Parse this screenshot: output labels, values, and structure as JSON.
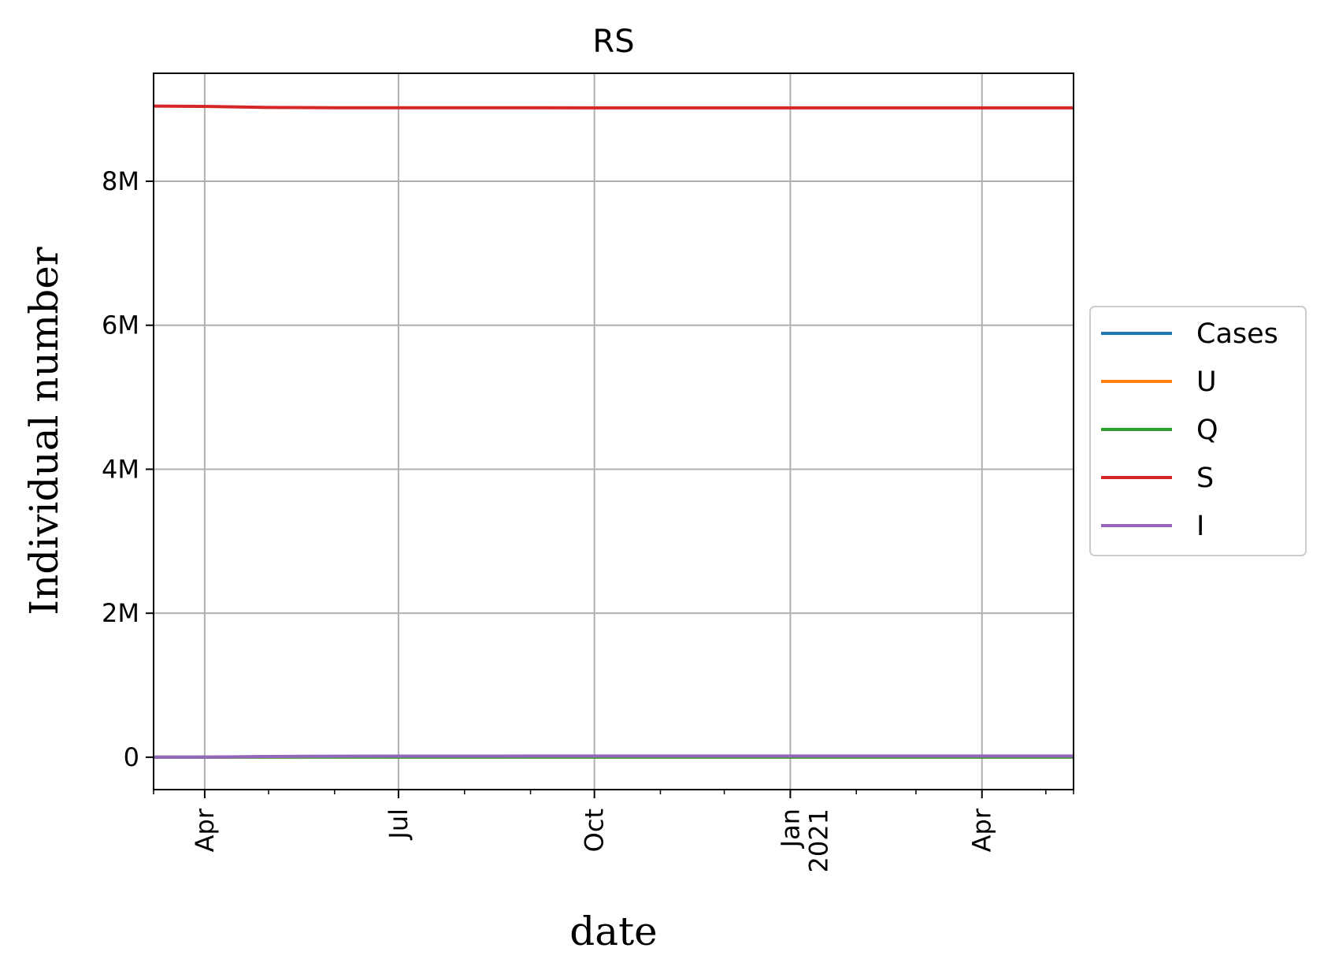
{
  "chart_data": {
    "type": "line",
    "title": "RS",
    "xlabel": "date",
    "ylabel": "Individual number",
    "x": [
      "2020-03-08",
      "2020-04-01",
      "2020-05-01",
      "2020-06-01",
      "2020-07-01",
      "2020-08-01",
      "2020-09-01",
      "2020-10-01",
      "2020-11-01",
      "2020-12-01",
      "2021-01-01",
      "2021-02-01",
      "2021-03-01",
      "2021-04-01",
      "2021-05-01",
      "2021-05-14"
    ],
    "xlim": [
      "2020-03-08",
      "2021-05-14"
    ],
    "ylim": [
      -450000,
      9500000
    ],
    "x_ticks": [
      {
        "date": "2020-04-01",
        "label": "Apr",
        "label2": ""
      },
      {
        "date": "2020-07-01",
        "label": "Jul",
        "label2": ""
      },
      {
        "date": "2020-10-01",
        "label": "Oct",
        "label2": ""
      },
      {
        "date": "2021-01-01",
        "label": "Jan",
        "label2": "2021"
      },
      {
        "date": "2021-04-01",
        "label": "Apr",
        "label2": ""
      }
    ],
    "x_minor_ticks": [
      "2020-03-08",
      "2020-05-01",
      "2020-06-01",
      "2020-08-01",
      "2020-09-01",
      "2020-11-01",
      "2020-12-01",
      "2021-02-01",
      "2021-03-01",
      "2021-05-01",
      "2021-05-14"
    ],
    "y_ticks": [
      {
        "value": 0,
        "label": "0"
      },
      {
        "value": 2000000,
        "label": "2M"
      },
      {
        "value": 4000000,
        "label": "4M"
      },
      {
        "value": 6000000,
        "label": "6M"
      },
      {
        "value": 8000000,
        "label": "8M"
      }
    ],
    "grid": true,
    "legend_position": "outside-right",
    "series": [
      {
        "name": "Cases",
        "color": "#1f77b4",
        "values": [
          0,
          1000,
          6000,
          10000,
          12000,
          13000,
          13500,
          14000,
          14000,
          14000,
          14000,
          14000,
          14000,
          14000,
          14000,
          14000
        ]
      },
      {
        "name": "U",
        "color": "#ff7f0e",
        "values": [
          0,
          500,
          2000,
          3000,
          3200,
          3300,
          3300,
          3300,
          3300,
          3300,
          3300,
          3300,
          3300,
          3300,
          3300,
          3300
        ]
      },
      {
        "name": "Q",
        "color": "#2ca02c",
        "values": [
          0,
          300,
          1500,
          2000,
          2000,
          2000,
          2000,
          2000,
          2000,
          2000,
          2000,
          2000,
          2000,
          2000,
          2000,
          2000
        ]
      },
      {
        "name": "S",
        "color": "#d62728",
        "values": [
          9045000,
          9040000,
          9025000,
          9022000,
          9021000,
          9020500,
          9020200,
          9020000,
          9020000,
          9020000,
          9020000,
          9020000,
          9020000,
          9020000,
          9020000,
          9020000
        ]
      },
      {
        "name": "I",
        "color": "#9467bd",
        "values": [
          0,
          2000,
          10000,
          14000,
          15000,
          15500,
          15800,
          16000,
          16000,
          16000,
          16000,
          16000,
          16000,
          16000,
          16000,
          16000
        ]
      }
    ]
  }
}
